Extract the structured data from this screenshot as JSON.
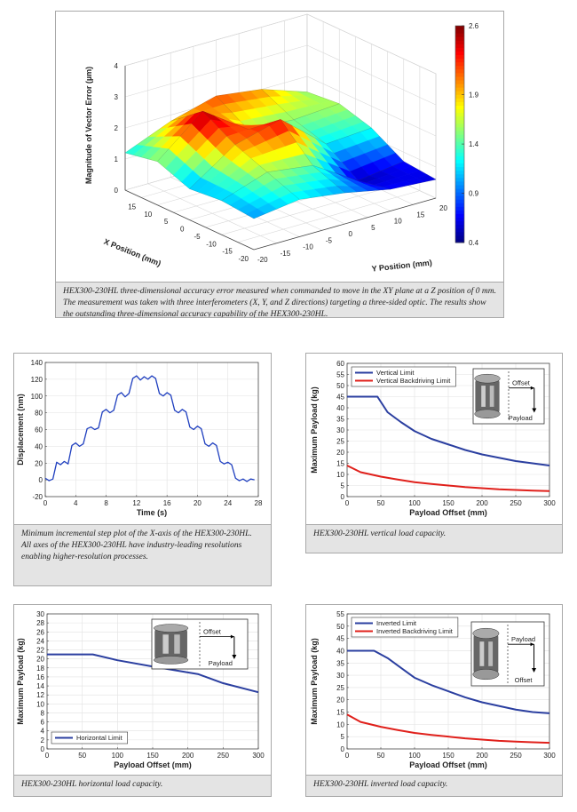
{
  "chart_data": [
    {
      "type": "surface",
      "xlabel": "X Position (mm)",
      "ylabel": "Y Position (mm)",
      "zlabel": "Magnitude of Vector Error (µm)",
      "x": [
        -20,
        -10,
        0,
        10,
        20
      ],
      "y": [
        -20,
        -10,
        0,
        10,
        20
      ],
      "z": [
        [
          1.0,
          1.2,
          1.0,
          0.7,
          0.6
        ],
        [
          1.1,
          1.6,
          1.4,
          0.5,
          0.7
        ],
        [
          1.0,
          2.0,
          2.4,
          1.2,
          1.3
        ],
        [
          1.4,
          2.6,
          1.6,
          1.5,
          1.6
        ],
        [
          1.2,
          1.8,
          2.2,
          2.0,
          1.5
        ]
      ],
      "xlim": [
        -20,
        20
      ],
      "xticks": [
        -20,
        -15,
        -10,
        -5,
        0,
        5,
        10,
        15
      ],
      "ylim": [
        -20,
        20
      ],
      "yticks": [
        -20,
        -15,
        -10,
        -5,
        0,
        5,
        10,
        15,
        20
      ],
      "zlim": [
        0,
        4
      ],
      "zticks": [
        0,
        1,
        2,
        3,
        4
      ],
      "colormap": "jet",
      "clim": [
        0.4,
        2.6
      ],
      "cticks": [
        0.4,
        0.9,
        1.4,
        1.9,
        2.6
      ],
      "grid": true,
      "caption": "HEX300-230HL three-dimensional accuracy error measured when commanded to move in the XY plane at a Z position of 0 mm. The measurement was taken with three interferometers (X, Y, and Z directions) targeting a three-sided optic. The results show the outstanding three-dimensional accuracy capability of the HEX300-230HL."
    },
    {
      "type": "line",
      "xlabel": "Time (s)",
      "ylabel": "Displacement (nm)",
      "color": "#1f3fbf",
      "x": [
        0,
        0.5,
        1,
        1.5,
        2,
        2.5,
        3,
        3.5,
        4,
        4.5,
        5,
        5.5,
        6,
        6.5,
        7,
        7.5,
        8,
        8.5,
        9,
        9.5,
        10,
        10.5,
        11,
        11.5,
        12,
        12.5,
        13,
        13.5,
        14,
        14.5,
        15,
        15.5,
        16,
        16.5,
        17,
        17.5,
        18,
        18.5,
        19,
        19.5,
        20,
        20.5,
        21,
        21.5,
        22,
        22.5,
        23,
        23.5,
        24,
        24.5,
        25,
        25.5,
        26,
        26.5,
        27,
        27.5
      ],
      "values": [
        2,
        -1,
        1,
        21,
        18,
        22,
        19,
        41,
        44,
        40,
        43,
        61,
        63,
        60,
        62,
        81,
        84,
        80,
        83,
        101,
        104,
        99,
        103,
        121,
        124,
        119,
        123,
        120,
        124,
        121,
        103,
        100,
        104,
        101,
        83,
        80,
        84,
        81,
        63,
        60,
        64,
        61,
        43,
        40,
        44,
        41,
        22,
        19,
        21,
        18,
        2,
        -1,
        1,
        -2,
        1,
        0
      ],
      "xlim": [
        0,
        28
      ],
      "xticks": [
        0,
        4,
        8,
        12,
        16,
        20,
        24,
        28
      ],
      "ylim": [
        -20,
        140
      ],
      "yticks": [
        -20,
        0,
        20,
        40,
        60,
        80,
        100,
        120,
        140
      ],
      "grid": true,
      "caption": "Minimum incremental step plot of the X-axis of the HEX300-230HL. All axes of the HEX300-230HL have industry-leading resolutions enabling higher-resolution processes."
    },
    {
      "type": "line",
      "xlabel": "Payload Offset (mm)",
      "ylabel": "Maximum Payload (kg)",
      "series": [
        {
          "name": "Vertical Limit",
          "color": "#2b3fa0",
          "x": [
            0,
            45,
            60,
            80,
            100,
            125,
            150,
            175,
            200,
            225,
            250,
            275,
            300
          ],
          "values": [
            45,
            45,
            38,
            33.5,
            29.5,
            26,
            23.5,
            21,
            19,
            17.5,
            16,
            15,
            14
          ]
        },
        {
          "name": "Vertical Backdriving Limit",
          "color": "#e0201b",
          "x": [
            0,
            20,
            50,
            75,
            100,
            125,
            150,
            175,
            200,
            225,
            250,
            275,
            300
          ],
          "values": [
            14,
            11,
            9,
            7.7,
            6.5,
            5.7,
            5,
            4.3,
            3.8,
            3.3,
            3,
            2.7,
            2.5
          ]
        }
      ],
      "xlim": [
        0,
        300
      ],
      "xticks": [
        0,
        50,
        100,
        150,
        200,
        250,
        300
      ],
      "ylim": [
        0,
        60
      ],
      "yticks": [
        0,
        5,
        10,
        15,
        20,
        25,
        30,
        35,
        40,
        45,
        50,
        55,
        60
      ],
      "grid": true,
      "legend": "upper left",
      "inset_labels": [
        "Offset",
        "Payload"
      ],
      "caption": "HEX300-230HL vertical load capacity."
    },
    {
      "type": "line",
      "xlabel": "Payload Offset (mm)",
      "ylabel": "Maximum Payload (kg)",
      "series": [
        {
          "name": "Horizontal Limit",
          "color": "#2b3fa0",
          "x": [
            0,
            65,
            100,
            150,
            215,
            250,
            300
          ],
          "values": [
            21,
            21,
            19.7,
            18.3,
            16.6,
            14.6,
            12.6
          ]
        }
      ],
      "xlim": [
        0,
        300
      ],
      "xticks": [
        0,
        50,
        100,
        150,
        200,
        250,
        300
      ],
      "ylim": [
        0,
        30
      ],
      "yticks": [
        0,
        2,
        4,
        6,
        8,
        10,
        12,
        14,
        16,
        18,
        20,
        22,
        24,
        26,
        28,
        30
      ],
      "grid": true,
      "legend": "lower left",
      "inset_labels": [
        "Offset",
        "Payload"
      ],
      "caption": "HEX300-230HL horizontal load capacity."
    },
    {
      "type": "line",
      "xlabel": "Payload Offset (mm)",
      "ylabel": "Maximum Payload (kg)",
      "series": [
        {
          "name": "Inverted Limit",
          "color": "#2b3fa0",
          "x": [
            0,
            40,
            60,
            80,
            100,
            125,
            150,
            175,
            200,
            225,
            250,
            275,
            300
          ],
          "values": [
            40,
            40,
            37,
            33,
            29,
            26,
            23.5,
            21,
            19,
            17.5,
            16,
            15,
            14.5
          ]
        },
        {
          "name": "Inverted Backdriving Limit",
          "color": "#e0201b",
          "x": [
            0,
            20,
            50,
            75,
            100,
            125,
            150,
            175,
            200,
            225,
            250,
            275,
            300
          ],
          "values": [
            14,
            11,
            9,
            7.7,
            6.5,
            5.7,
            5,
            4.3,
            3.8,
            3.3,
            3,
            2.7,
            2.5
          ]
        }
      ],
      "xlim": [
        0,
        300
      ],
      "xticks": [
        0,
        50,
        100,
        150,
        200,
        250,
        300
      ],
      "ylim": [
        0,
        55
      ],
      "yticks": [
        0,
        5,
        10,
        15,
        20,
        25,
        30,
        35,
        40,
        45,
        50,
        55
      ],
      "grid": true,
      "legend": "upper left",
      "inset_labels": [
        "Payload",
        "Offset"
      ],
      "caption": "HEX300-230HL inverted load capacity."
    }
  ]
}
